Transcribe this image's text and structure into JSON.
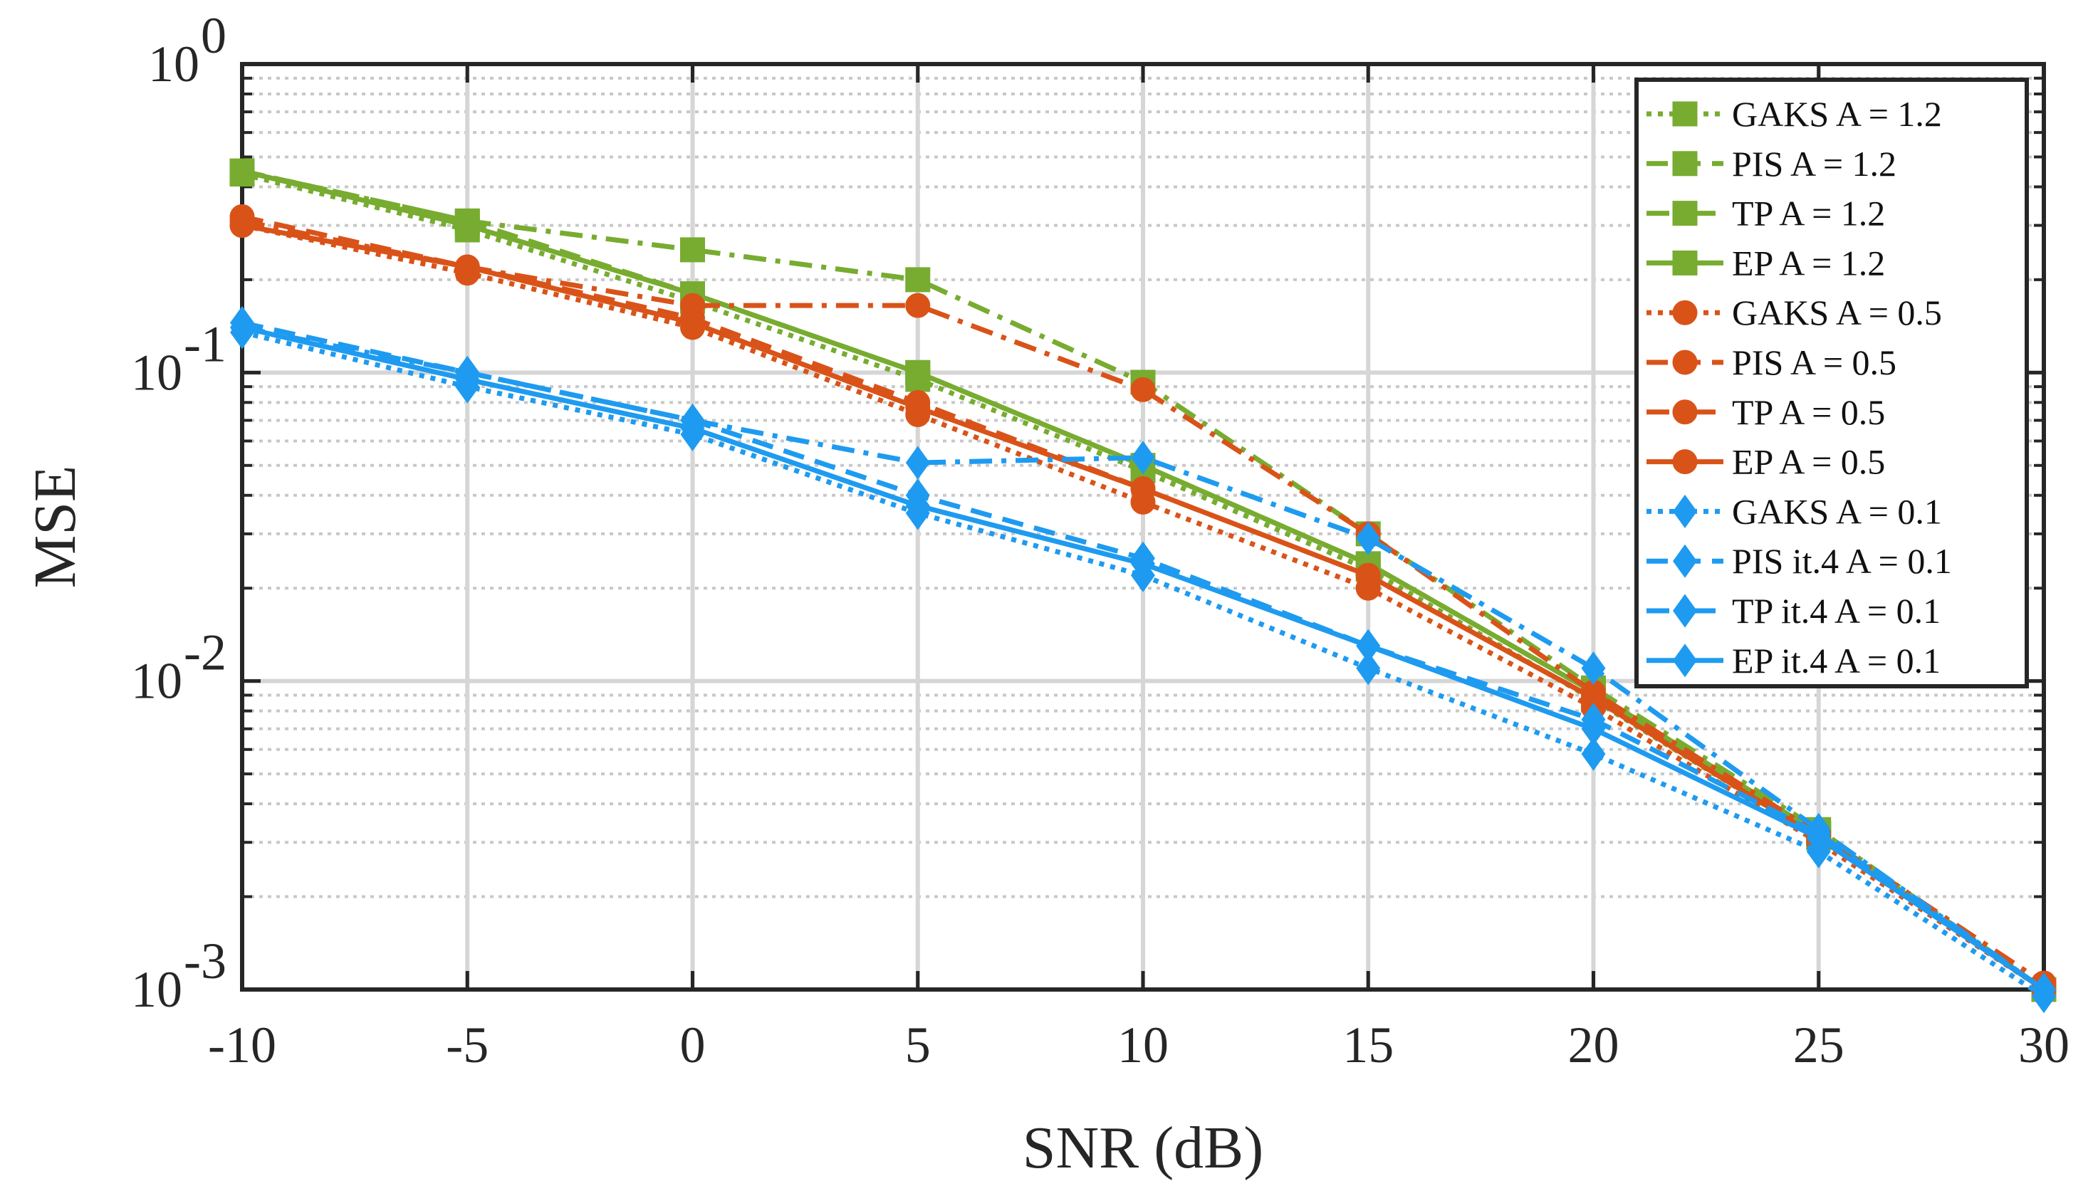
{
  "chart_data": {
    "type": "line",
    "title": "",
    "xlabel": "SNR (dB)",
    "ylabel": "MSE",
    "xscale": "linear",
    "yscale": "log",
    "xlim": [
      -10,
      30
    ],
    "ylim": [
      0.001,
      1
    ],
    "grid": true,
    "legend_position": "top-right",
    "x": [
      -10,
      -5,
      0,
      5,
      10,
      15,
      20,
      25,
      30
    ],
    "xticks": [
      "-10",
      "-5",
      "0",
      "5",
      "10",
      "15",
      "20",
      "25",
      "30"
    ],
    "yticks": [
      {
        "base": "10",
        "exp": "0"
      },
      {
        "base": "10",
        "exp": "-1"
      },
      {
        "base": "10",
        "exp": "-2"
      },
      {
        "base": "10",
        "exp": "-3"
      }
    ],
    "colors": {
      "green": "#77ac30",
      "orange": "#d95319",
      "blue": "#1e9bf0"
    },
    "series": [
      {
        "name": "GAKS A = 1.2",
        "color": "#77ac30",
        "dash": "dotted",
        "marker": "square",
        "values": [
          0.44,
          0.29,
          0.17,
          0.095,
          0.048,
          0.023,
          0.0087,
          0.0031,
          0.001
        ]
      },
      {
        "name": "PIS A = 1.2",
        "color": "#77ac30",
        "dash": "dashed",
        "marker": "square",
        "values": [
          0.45,
          0.31,
          0.18,
          0.1,
          0.05,
          0.024,
          0.0092,
          0.0032,
          0.001
        ]
      },
      {
        "name": "TP A = 1.2",
        "color": "#77ac30",
        "dash": "dashdot",
        "marker": "square",
        "values": [
          0.45,
          0.31,
          0.25,
          0.2,
          0.093,
          0.03,
          0.0095,
          0.0033,
          0.001
        ]
      },
      {
        "name": "EP A = 1.2",
        "color": "#77ac30",
        "dash": "solid",
        "marker": "square",
        "values": [
          0.45,
          0.3,
          0.18,
          0.1,
          0.05,
          0.024,
          0.0092,
          0.0032,
          0.001
        ]
      },
      {
        "name": "GAKS A = 0.5",
        "color": "#d95319",
        "dash": "dotted",
        "marker": "circle",
        "values": [
          0.3,
          0.21,
          0.14,
          0.073,
          0.038,
          0.02,
          0.0082,
          0.003,
          0.001
        ]
      },
      {
        "name": "PIS A = 0.5",
        "color": "#d95319",
        "dash": "dashed",
        "marker": "circle",
        "values": [
          0.32,
          0.22,
          0.15,
          0.08,
          0.042,
          0.022,
          0.0088,
          0.0031,
          0.001
        ]
      },
      {
        "name": "TP A = 0.5",
        "color": "#d95319",
        "dash": "dashdot",
        "marker": "circle",
        "values": [
          0.31,
          0.22,
          0.165,
          0.165,
          0.088,
          0.03,
          0.0092,
          0.0032,
          0.00105
        ]
      },
      {
        "name": "EP A = 0.5",
        "color": "#d95319",
        "dash": "solid",
        "marker": "circle",
        "values": [
          0.3,
          0.22,
          0.145,
          0.077,
          0.042,
          0.022,
          0.0088,
          0.0031,
          0.001
        ]
      },
      {
        "name": "GAKS A = 0.1",
        "color": "#1e9bf0",
        "dash": "dotted",
        "marker": "diamond",
        "values": [
          0.135,
          0.09,
          0.063,
          0.035,
          0.022,
          0.011,
          0.0058,
          0.0028,
          0.00095
        ]
      },
      {
        "name": "PIS it.4 A = 0.1",
        "color": "#1e9bf0",
        "dash": "dashed",
        "marker": "diamond",
        "values": [
          0.145,
          0.1,
          0.07,
          0.04,
          0.025,
          0.013,
          0.0075,
          0.0032,
          0.001
        ]
      },
      {
        "name": "TP it.4 A = 0.1",
        "color": "#1e9bf0",
        "dash": "dashdot",
        "marker": "diamond",
        "values": [
          0.14,
          0.1,
          0.07,
          0.051,
          0.053,
          0.029,
          0.011,
          0.0033,
          0.001
        ]
      },
      {
        "name": "EP it.4 A = 0.1",
        "color": "#1e9bf0",
        "dash": "solid",
        "marker": "diamond",
        "values": [
          0.14,
          0.095,
          0.066,
          0.037,
          0.024,
          0.013,
          0.007,
          0.0031,
          0.001
        ]
      }
    ]
  }
}
